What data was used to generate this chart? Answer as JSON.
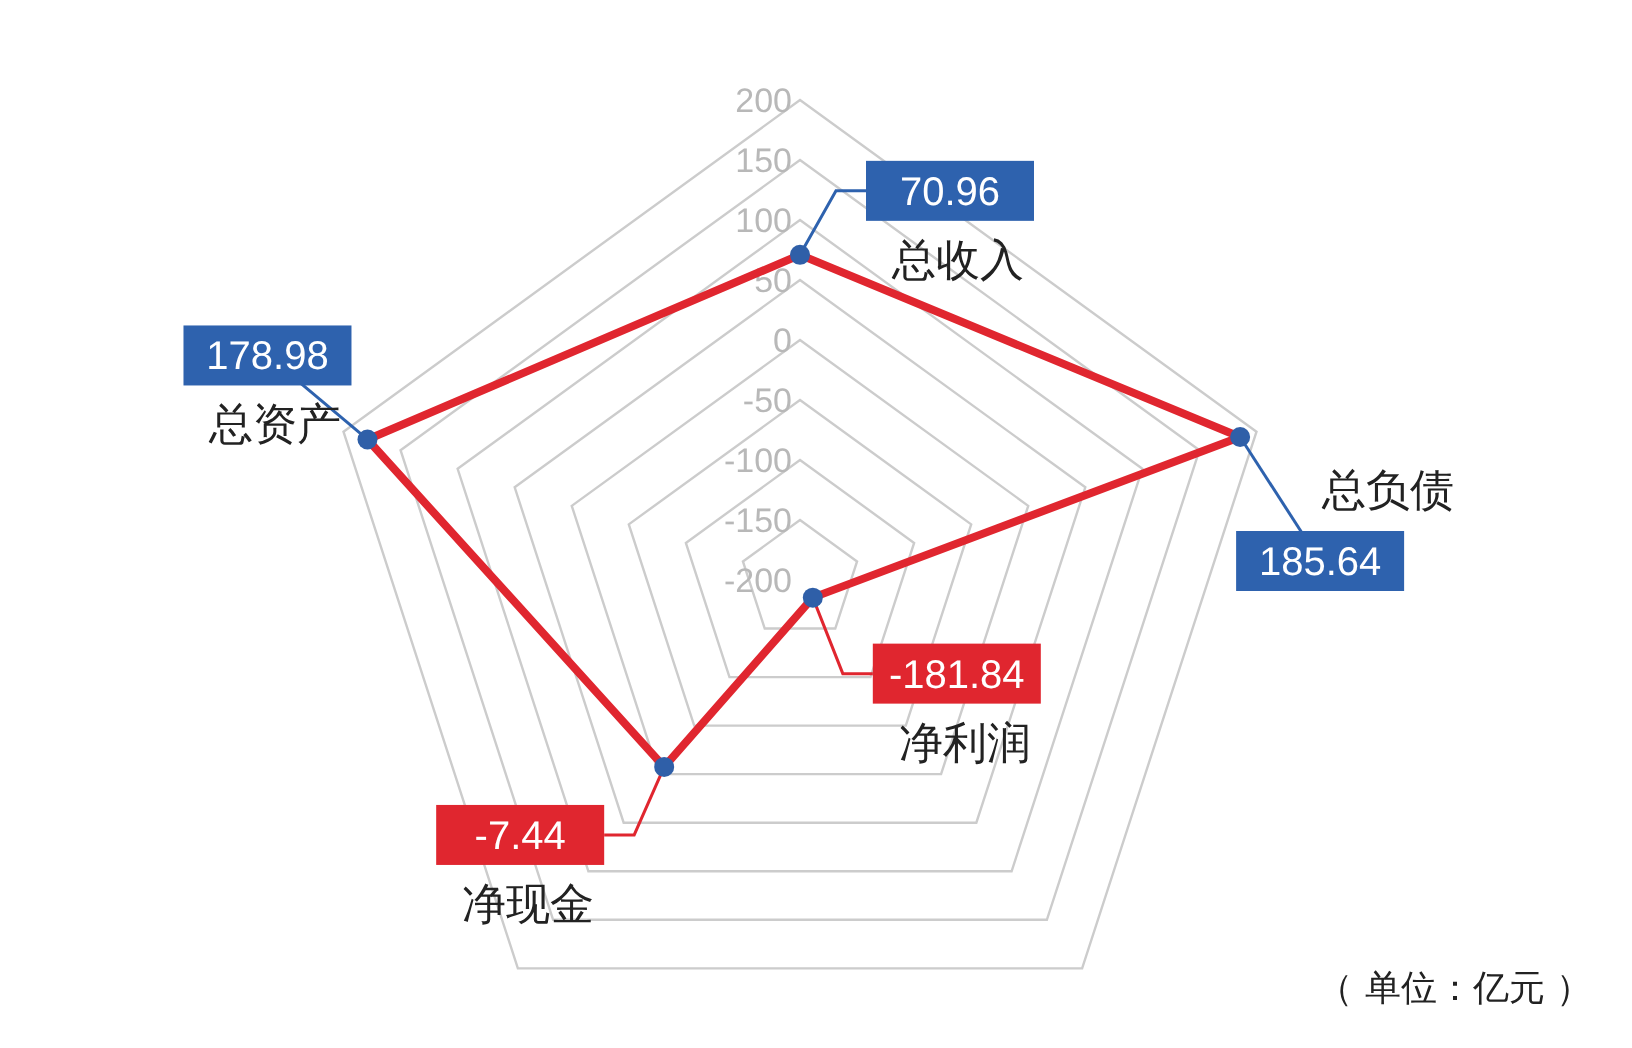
{
  "chart_data": {
    "type": "radar",
    "categories": [
      "总收入",
      "总负债",
      "净利润",
      "净现金",
      "总资产"
    ],
    "series": [
      {
        "color": "#e0262f",
        "values": [
          70.96,
          185.64,
          -181.84,
          -7.44,
          178.98
        ],
        "colors": [
          "#2e62ae",
          "#2e62ae",
          "#e0262f",
          "#e0262f",
          "#2e62ae"
        ]
      }
    ],
    "ylim": [
      -200,
      200
    ],
    "yticks": [
      -200,
      -150,
      -100,
      -50,
      0,
      50,
      100,
      150,
      200
    ],
    "marker": "circle",
    "data_labels": true,
    "annotations": [
      "（ 单位：亿元 ）"
    ]
  }
}
